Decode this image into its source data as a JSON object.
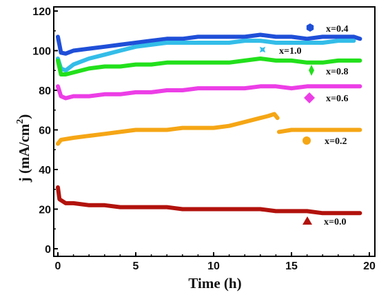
{
  "chart_data": {
    "type": "line",
    "xlabel": "Time (h)",
    "ylabel_main": "j (mA/cm",
    "ylabel_sup": "2",
    "ylabel_close": ")",
    "xlim": [
      0,
      20
    ],
    "ylim": [
      0,
      120
    ],
    "xticks": [
      0,
      5,
      10,
      15,
      20
    ],
    "yticks": [
      0,
      20,
      40,
      60,
      80,
      100,
      120
    ],
    "grid": false,
    "legend": "inline-right",
    "series": [
      {
        "name": "x=0.4",
        "color": "#1f4fd8",
        "marker": "hexagon",
        "points": [
          [
            0,
            107
          ],
          [
            0.2,
            99
          ],
          [
            0.5,
            98.5
          ],
          [
            1,
            100
          ],
          [
            2,
            101
          ],
          [
            3,
            102
          ],
          [
            4,
            103
          ],
          [
            5,
            104
          ],
          [
            6,
            105
          ],
          [
            7,
            106
          ],
          [
            8,
            106
          ],
          [
            9,
            107
          ],
          [
            10,
            107
          ],
          [
            11,
            107
          ],
          [
            12,
            107
          ],
          [
            13,
            108
          ],
          [
            14,
            107
          ],
          [
            15,
            107
          ],
          [
            16,
            106
          ],
          [
            17,
            107
          ],
          [
            18,
            107
          ],
          [
            19,
            107
          ],
          [
            19.4,
            106
          ]
        ]
      },
      {
        "name": "x=1.0",
        "color": "#33bde8",
        "marker": "star",
        "points": [
          [
            0,
            96
          ],
          [
            0.2,
            91
          ],
          [
            0.5,
            90
          ],
          [
            1,
            93
          ],
          [
            2,
            96
          ],
          [
            3,
            98
          ],
          [
            4,
            100
          ],
          [
            5,
            102
          ],
          [
            6,
            103
          ],
          [
            7,
            104
          ],
          [
            8,
            104
          ],
          [
            9,
            104
          ],
          [
            10,
            104
          ],
          [
            11,
            104
          ],
          [
            12,
            105
          ],
          [
            13,
            105
          ],
          [
            14,
            104
          ],
          [
            15,
            104
          ],
          [
            16,
            104
          ],
          [
            17,
            104
          ],
          [
            18,
            105
          ],
          [
            19,
            105
          ]
        ]
      },
      {
        "name": "x=0.8",
        "color": "#22e01b",
        "marker": "thin-diamond",
        "points": [
          [
            0,
            95
          ],
          [
            0.2,
            88
          ],
          [
            0.5,
            88
          ],
          [
            1,
            89
          ],
          [
            2,
            91
          ],
          [
            3,
            92
          ],
          [
            4,
            92
          ],
          [
            5,
            93
          ],
          [
            6,
            93
          ],
          [
            7,
            94
          ],
          [
            8,
            94
          ],
          [
            9,
            94
          ],
          [
            10,
            94
          ],
          [
            11,
            94
          ],
          [
            12,
            95
          ],
          [
            13,
            96
          ],
          [
            14,
            95
          ],
          [
            15,
            95
          ],
          [
            16,
            94
          ],
          [
            17,
            94
          ],
          [
            18,
            95
          ],
          [
            19,
            95
          ],
          [
            19.4,
            95
          ]
        ]
      },
      {
        "name": "x=0.6",
        "color": "#ec3ee6",
        "marker": "diamond",
        "points": [
          [
            0,
            82
          ],
          [
            0.2,
            77
          ],
          [
            0.5,
            76
          ],
          [
            1,
            77
          ],
          [
            2,
            77
          ],
          [
            3,
            78
          ],
          [
            4,
            78
          ],
          [
            5,
            79
          ],
          [
            6,
            79
          ],
          [
            7,
            80
          ],
          [
            8,
            80
          ],
          [
            9,
            81
          ],
          [
            10,
            81
          ],
          [
            11,
            81
          ],
          [
            12,
            81
          ],
          [
            13,
            82
          ],
          [
            14,
            82
          ],
          [
            15,
            81
          ],
          [
            16,
            82
          ],
          [
            17,
            82
          ],
          [
            18,
            82
          ],
          [
            19,
            82
          ],
          [
            19.4,
            82
          ]
        ]
      },
      {
        "name": "x=0.2",
        "color": "#f5a615",
        "marker": "circle",
        "segments": [
          [
            [
              0,
              53
            ],
            [
              0.2,
              55
            ],
            [
              1,
              56
            ],
            [
              2,
              57
            ],
            [
              3,
              58
            ],
            [
              4,
              59
            ],
            [
              5,
              60
            ],
            [
              6,
              60
            ],
            [
              7,
              60
            ],
            [
              8,
              61
            ],
            [
              9,
              61
            ],
            [
              10,
              61
            ],
            [
              11,
              62
            ],
            [
              12,
              64
            ],
            [
              13,
              66
            ],
            [
              13.5,
              67
            ],
            [
              13.9,
              68
            ],
            [
              14.1,
              66
            ]
          ],
          [
            [
              14.2,
              59
            ],
            [
              15,
              60
            ],
            [
              16,
              60
            ],
            [
              17,
              60
            ],
            [
              18,
              60
            ],
            [
              19,
              60
            ],
            [
              19.4,
              60
            ]
          ]
        ]
      },
      {
        "name": "x=0.0",
        "color": "#b2120c",
        "marker": "triangle",
        "points": [
          [
            0,
            31
          ],
          [
            0.1,
            25
          ],
          [
            0.5,
            23
          ],
          [
            1,
            23
          ],
          [
            2,
            22
          ],
          [
            3,
            22
          ],
          [
            4,
            21
          ],
          [
            5,
            21
          ],
          [
            6,
            21
          ],
          [
            7,
            21
          ],
          [
            8,
            20
          ],
          [
            9,
            20
          ],
          [
            10,
            20
          ],
          [
            11,
            20
          ],
          [
            12,
            20
          ],
          [
            13,
            20
          ],
          [
            14,
            19
          ],
          [
            15,
            19
          ],
          [
            16,
            19
          ],
          [
            17,
            18
          ],
          [
            18,
            18
          ],
          [
            19,
            18
          ],
          [
            19.4,
            18
          ]
        ]
      }
    ]
  }
}
